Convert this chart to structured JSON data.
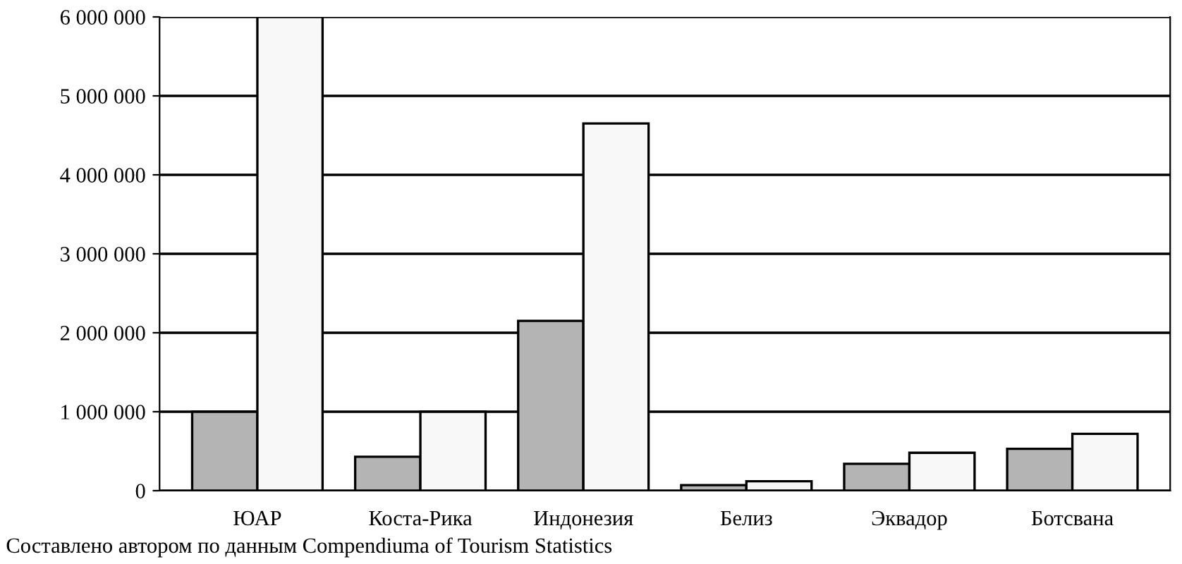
{
  "chart_data": {
    "type": "bar",
    "categories": [
      "ЮАР",
      "Коста-Рика",
      "Индонезия",
      "Белиз",
      "Эквадор",
      "Ботсвана"
    ],
    "series": [
      {
        "color": "#b4b4b4",
        "values": [
          1000000,
          430000,
          2150000,
          70000,
          340000,
          530000
        ]
      },
      {
        "color": "#f8f8f8",
        "values": [
          6000000,
          1000000,
          4650000,
          120000,
          480000,
          720000
        ]
      }
    ],
    "ylim": [
      0,
      6000000
    ],
    "yticks": [
      {
        "value": 0,
        "label": "0"
      },
      {
        "value": 1000000,
        "label": "1 000 000"
      },
      {
        "value": 2000000,
        "label": "2 000 000"
      },
      {
        "value": 3000000,
        "label": "3 000 000"
      },
      {
        "value": 4000000,
        "label": "4 000 000"
      },
      {
        "value": 5000000,
        "label": "5 000 000"
      },
      {
        "value": 6000000,
        "label": "6 000 000"
      }
    ],
    "grid": "y",
    "annotations": [
      "Составлено автором по данным Compendiuma of Tourism Statistics"
    ]
  }
}
